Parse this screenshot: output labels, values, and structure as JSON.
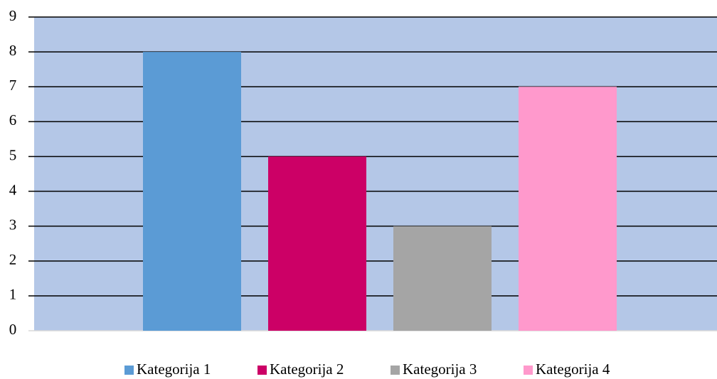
{
  "chart_data": {
    "type": "bar",
    "categories": [
      null
    ],
    "series": [
      {
        "name": "Kategorija 1",
        "color": "#5b9bd5",
        "values": [
          8
        ]
      },
      {
        "name": "Kategorija 2",
        "color": "#cc0066",
        "values": [
          5
        ]
      },
      {
        "name": "Kategorija 3",
        "color": "#a5a5a5",
        "values": [
          3
        ]
      },
      {
        "name": "Kategorija 4",
        "color": "#ff99cc",
        "values": [
          7
        ]
      }
    ],
    "ylim": [
      0,
      9
    ],
    "yticks": [
      0,
      1,
      2,
      3,
      4,
      5,
      6,
      7,
      8,
      9
    ],
    "grid": true,
    "legend": "bottom"
  }
}
